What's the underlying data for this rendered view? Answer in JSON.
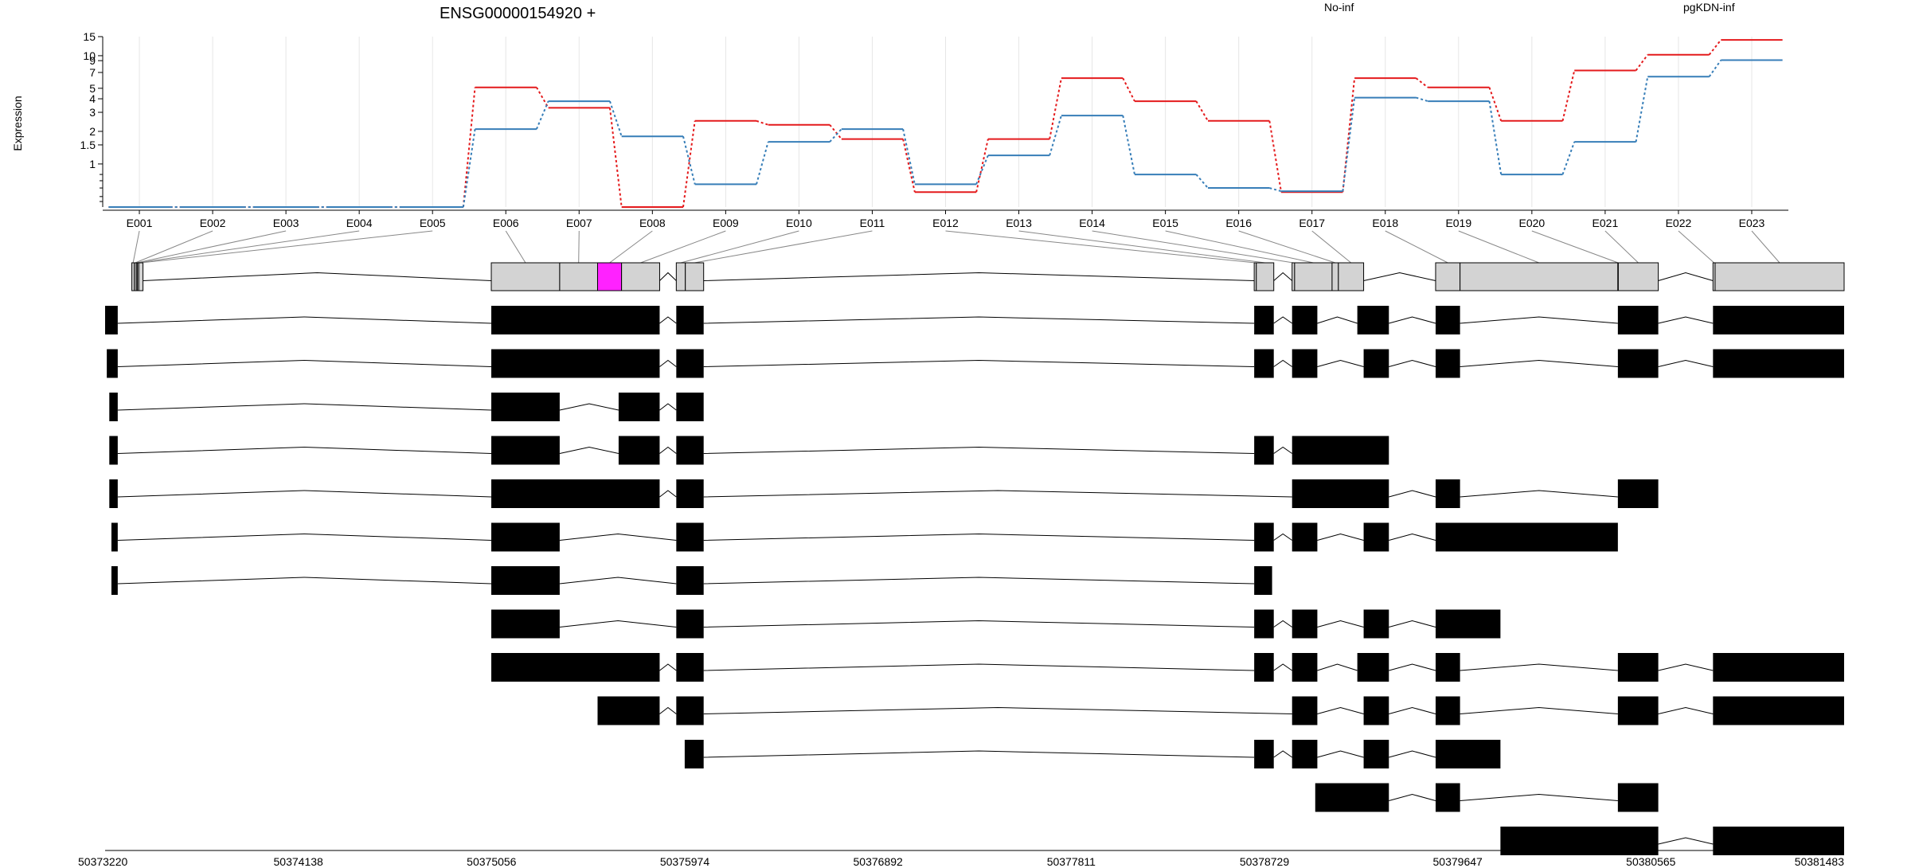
{
  "chart_data": {
    "type": "line",
    "title": "ENSG00000154920 +",
    "ylabel": "Expression",
    "y_scale": "log",
    "y_ticks": [
      {
        "v": 1,
        "label": "1"
      },
      {
        "v": 1.5,
        "label": "1.5"
      },
      {
        "v": 2,
        "label": "2"
      },
      {
        "v": 3,
        "label": "3"
      },
      {
        "v": 4,
        "label": "4"
      },
      {
        "v": 5,
        "label": "5"
      },
      {
        "v": 7,
        "label": "7"
      },
      {
        "v": 9,
        "label": "9"
      },
      {
        "v": 10,
        "label": "10"
      },
      {
        "v": 15,
        "label": "15"
      }
    ],
    "y_minor_ticks": [
      0.45,
      0.5,
      0.6,
      0.7,
      0.8
    ],
    "ylim": [
      0.4,
      15
    ],
    "grid": true,
    "legend_position": "top-right",
    "categories": [
      "E001",
      "E002",
      "E003",
      "E004",
      "E005",
      "E006",
      "E007",
      "E008",
      "E009",
      "E010",
      "E011",
      "E012",
      "E013",
      "E014",
      "E015",
      "E016",
      "E017",
      "E018",
      "E019",
      "E020",
      "E021",
      "E022",
      "E023"
    ],
    "series": [
      {
        "name": "No-inf",
        "color": "#e41a1c",
        "values": [
          0.4,
          0.4,
          0.4,
          0.4,
          0.4,
          5.1,
          3.3,
          0.4,
          2.5,
          2.3,
          1.7,
          0.55,
          1.7,
          6.2,
          3.8,
          2.5,
          0.55,
          6.2,
          5.1,
          2.5,
          7.3,
          10.2,
          14
        ]
      },
      {
        "name": "pgKDN-inf",
        "color": "#377eb8",
        "values": [
          0.4,
          0.4,
          0.4,
          0.4,
          0.4,
          2.1,
          3.8,
          1.8,
          0.65,
          1.6,
          2.1,
          0.65,
          1.2,
          2.8,
          0.8,
          0.6,
          0.56,
          4.1,
          3.8,
          0.8,
          1.6,
          6.4,
          9.1
        ]
      }
    ],
    "genomic_axis": {
      "ticks": [
        "50373220",
        "50374138",
        "50375056",
        "50375974",
        "50376892",
        "50377811",
        "50378729",
        "50379647",
        "50380565",
        "50381483"
      ],
      "range": [
        50373220,
        50381483
      ]
    },
    "exon_bins": [
      {
        "id": "E001",
        "s": 50373347,
        "e": 50373359
      },
      {
        "id": "E002",
        "s": 50373359,
        "e": 50373368
      },
      {
        "id": "E003",
        "s": 50373368,
        "e": 50373373
      },
      {
        "id": "E004",
        "s": 50373373,
        "e": 50373380
      },
      {
        "id": "E005",
        "s": 50373380,
        "e": 50373400
      },
      {
        "id": "E006",
        "s": 50375055,
        "e": 50375380
      },
      {
        "id": "E007",
        "s": 50375380,
        "e": 50375560
      },
      {
        "id": "E008",
        "s": 50375560,
        "e": 50375674
      },
      {
        "id": "E009",
        "s": 50375674,
        "e": 50375855
      },
      {
        "id": "E010",
        "s": 50375934,
        "e": 50375977
      },
      {
        "id": "E011",
        "s": 50375977,
        "e": 50376064
      },
      {
        "id": "E012",
        "s": 50378680,
        "e": 50378690
      },
      {
        "id": "E013",
        "s": 50378690,
        "e": 50378773
      },
      {
        "id": "E014",
        "s": 50378860,
        "e": 50378872
      },
      {
        "id": "E015",
        "s": 50378872,
        "e": 50379050
      },
      {
        "id": "E016",
        "s": 50379050,
        "e": 50379080
      },
      {
        "id": "E017",
        "s": 50379080,
        "e": 50379200
      },
      {
        "id": "E018",
        "s": 50379542,
        "e": 50379658
      },
      {
        "id": "E019",
        "s": 50379658,
        "e": 50380408
      },
      {
        "id": "E020",
        "s": 50380408,
        "e": 50380410
      },
      {
        "id": "E021",
        "s": 50380410,
        "e": 50380600
      },
      {
        "id": "E022",
        "s": 50380860,
        "e": 50380870
      },
      {
        "id": "E023",
        "s": 50380870,
        "e": 50381483
      }
    ],
    "transcripts": [
      {
        "exons": [
          [
            50373220,
            50373280
          ],
          [
            50375055,
            50375855
          ],
          [
            50375934,
            50376064
          ],
          [
            50378680,
            50378773
          ],
          [
            50378860,
            50378980
          ],
          [
            50379170,
            50379320
          ],
          [
            50379542,
            50379658
          ],
          [
            50380408,
            50380600
          ],
          [
            50380860,
            50381483
          ]
        ]
      },
      {
        "exons": [
          [
            50373228,
            50373280
          ],
          [
            50375055,
            50375855
          ],
          [
            50375934,
            50376064
          ],
          [
            50378680,
            50378773
          ],
          [
            50378860,
            50378980
          ],
          [
            50379200,
            50379320
          ],
          [
            50379542,
            50379658
          ],
          [
            50380408,
            50380600
          ],
          [
            50380860,
            50381483
          ]
        ]
      },
      {
        "exons": [
          [
            50373240,
            50373280
          ],
          [
            50375055,
            50375380
          ],
          [
            50375660,
            50375855
          ],
          [
            50375934,
            50376064
          ]
        ]
      },
      {
        "exons": [
          [
            50373240,
            50373280
          ],
          [
            50375055,
            50375380
          ],
          [
            50375660,
            50375855
          ],
          [
            50375934,
            50376064
          ],
          [
            50378680,
            50378773
          ],
          [
            50378860,
            50379320
          ]
        ]
      },
      {
        "exons": [
          [
            50373240,
            50373280
          ],
          [
            50375055,
            50375855
          ],
          [
            50375934,
            50376064
          ],
          [
            50378860,
            50379320
          ],
          [
            50379542,
            50379658
          ],
          [
            50380408,
            50380600
          ]
        ]
      },
      {
        "exons": [
          [
            50373250,
            50373280
          ],
          [
            50375055,
            50375380
          ],
          [
            50375934,
            50376064
          ],
          [
            50378680,
            50378773
          ],
          [
            50378860,
            50378980
          ],
          [
            50379200,
            50379320
          ],
          [
            50379542,
            50380408
          ]
        ]
      },
      {
        "exons": [
          [
            50373250,
            50373280
          ],
          [
            50375055,
            50375380
          ],
          [
            50375934,
            50376064
          ],
          [
            50378680,
            50378765
          ]
        ]
      },
      {
        "exons": [
          [
            50375055,
            50375380
          ],
          [
            50375934,
            50376064
          ],
          [
            50378680,
            50378773
          ],
          [
            50378860,
            50378980
          ],
          [
            50379200,
            50379320
          ],
          [
            50379542,
            50379850
          ]
        ]
      },
      {
        "exons": [
          [
            50375055,
            50375855
          ],
          [
            50375934,
            50376064
          ],
          [
            50378680,
            50378773
          ],
          [
            50378860,
            50378980
          ],
          [
            50379170,
            50379320
          ],
          [
            50379542,
            50379658
          ],
          [
            50380408,
            50380600
          ],
          [
            50380860,
            50381483
          ]
        ]
      },
      {
        "exons": [
          [
            50375560,
            50375855
          ],
          [
            50375934,
            50376064
          ],
          [
            50378860,
            50378980
          ],
          [
            50379200,
            50379320
          ],
          [
            50379542,
            50379658
          ],
          [
            50380408,
            50380600
          ],
          [
            50380860,
            50381483
          ]
        ]
      },
      {
        "exons": [
          [
            50375974,
            50376064
          ],
          [
            50378680,
            50378773
          ],
          [
            50378860,
            50378980
          ],
          [
            50379200,
            50379320
          ],
          [
            50379542,
            50379850
          ]
        ]
      },
      {
        "exons": [
          [
            50378970,
            50379320
          ],
          [
            50379542,
            50379658
          ],
          [
            50380408,
            50380600
          ]
        ]
      },
      {
        "exons": [
          [
            50379850,
            50380600
          ],
          [
            50380860,
            50381483
          ]
        ]
      }
    ],
    "highlight": {
      "exon": "E008",
      "color": "#ff22ff"
    }
  }
}
